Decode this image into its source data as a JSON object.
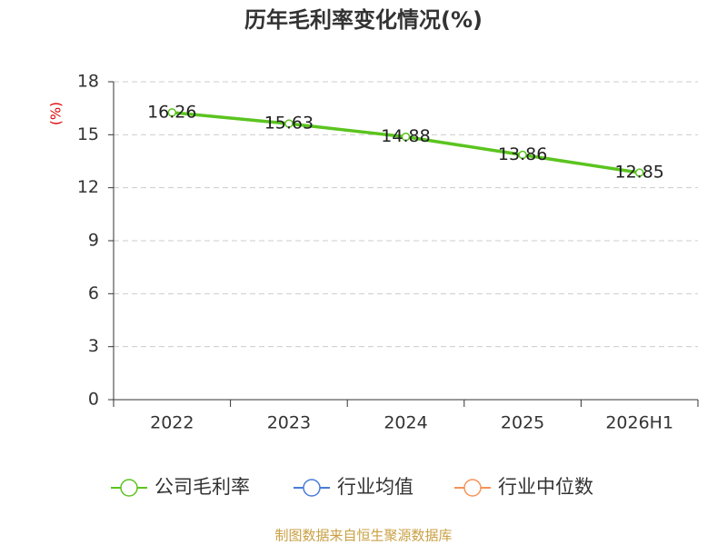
{
  "chart_data": {
    "type": "line",
    "title": "历年毛利率变化情况(%)",
    "y_label": "(%)",
    "categories": [
      "2022",
      "2023",
      "2024",
      "2025",
      "2026H1"
    ],
    "series": [
      {
        "name": "公司毛利率",
        "color": "#5bc41f",
        "values": [
          16.26,
          15.63,
          14.88,
          13.86,
          12.85
        ]
      },
      {
        "name": "行业均值",
        "color": "#4a7bd8",
        "values": [
          null,
          null,
          null,
          null,
          null
        ]
      },
      {
        "name": "行业中位数",
        "color": "#f4935a",
        "values": [
          null,
          null,
          null,
          null,
          null
        ]
      }
    ],
    "ylim": [
      0,
      18
    ],
    "yticks": [
      0,
      3,
      6,
      9,
      12,
      15,
      18
    ],
    "grid": true,
    "source": "制图数据来自恒生聚源数据库"
  }
}
